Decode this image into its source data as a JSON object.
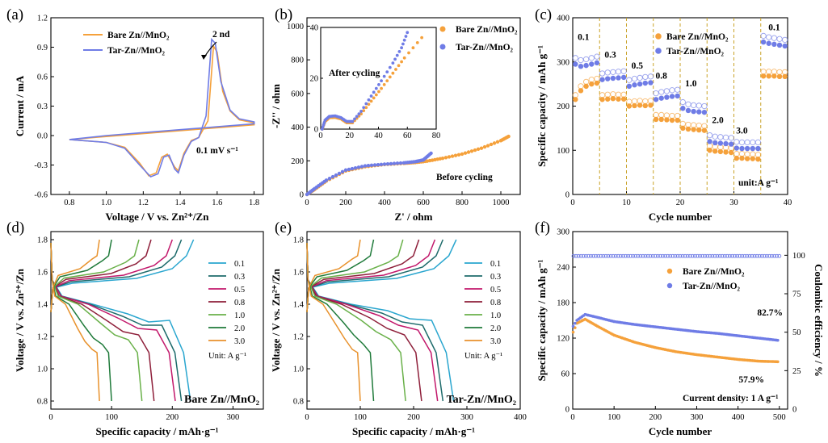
{
  "colors": {
    "bare": "#f5a13b",
    "tar": "#6f7ce6",
    "bare_dark": "#e88b20",
    "tar_dark": "#5566dd",
    "stripe": "#c9a227",
    "green_text": "#2e7d1e",
    "cyc_curves": [
      "#2aa6cf",
      "#1e6b6b",
      "#c2186b",
      "#8e1f3a",
      "#6ab14a",
      "#1f7a3a",
      "#e8912b"
    ]
  },
  "panels": [
    {
      "id": "a",
      "letter": "(a)",
      "chart_data": {
        "type": "line",
        "title": "",
        "xlabel": "Voltage / V vs. Zn²⁺/Zn",
        "ylabel": "Current / mA",
        "xlim": [
          0.7,
          1.85
        ],
        "ylim": [
          -0.6,
          1.2
        ],
        "xticks": [
          "0.8",
          "1.0",
          "1.2",
          "1.4",
          "1.6",
          "1.8"
        ],
        "yticks": [
          "-0.6",
          "-0.3",
          "0.0",
          "0.3",
          "0.6",
          "0.9",
          "1.2"
        ],
        "legend": [
          "Bare Zn//MnO₂",
          "Tar-Zn//MnO₂"
        ],
        "annotations": [
          "2 nd",
          "0.1 mV s⁻¹"
        ],
        "series": [
          {
            "name": "Bare Zn//MnO₂",
            "points": [
              [
                0.8,
                -0.04
              ],
              [
                1.0,
                -0.07
              ],
              [
                1.1,
                -0.12
              ],
              [
                1.18,
                -0.28
              ],
              [
                1.23,
                -0.41
              ],
              [
                1.27,
                -0.38
              ],
              [
                1.3,
                -0.22
              ],
              [
                1.33,
                -0.19
              ],
              [
                1.37,
                -0.32
              ],
              [
                1.39,
                -0.36
              ],
              [
                1.42,
                -0.18
              ],
              [
                1.46,
                -0.05
              ],
              [
                1.5,
                -0.02
              ],
              [
                1.55,
                0.15
              ],
              [
                1.58,
                0.91
              ],
              [
                1.6,
                0.85
              ],
              [
                1.63,
                0.45
              ],
              [
                1.67,
                0.25
              ],
              [
                1.72,
                0.16
              ],
              [
                1.8,
                0.13
              ],
              [
                1.8,
                0.11
              ],
              [
                1.6,
                0.08
              ],
              [
                1.4,
                0.05
              ],
              [
                1.2,
                0.02
              ],
              [
                1.0,
                -0.01
              ],
              [
                0.8,
                -0.04
              ]
            ]
          },
          {
            "name": "Tar-Zn//MnO₂",
            "points": [
              [
                0.8,
                -0.04
              ],
              [
                1.0,
                -0.07
              ],
              [
                1.1,
                -0.13
              ],
              [
                1.18,
                -0.3
              ],
              [
                1.24,
                -0.42
              ],
              [
                1.28,
                -0.39
              ],
              [
                1.31,
                -0.22
              ],
              [
                1.34,
                -0.2
              ],
              [
                1.37,
                -0.34
              ],
              [
                1.39,
                -0.38
              ],
              [
                1.42,
                -0.2
              ],
              [
                1.46,
                -0.06
              ],
              [
                1.5,
                -0.02
              ],
              [
                1.54,
                0.2
              ],
              [
                1.57,
                0.98
              ],
              [
                1.59,
                0.94
              ],
              [
                1.62,
                0.55
              ],
              [
                1.67,
                0.26
              ],
              [
                1.72,
                0.17
              ],
              [
                1.8,
                0.14
              ],
              [
                1.8,
                0.12
              ],
              [
                1.6,
                0.09
              ],
              [
                1.4,
                0.06
              ],
              [
                1.2,
                0.03
              ],
              [
                1.0,
                0.0
              ],
              [
                0.8,
                -0.04
              ]
            ]
          }
        ]
      }
    },
    {
      "id": "b",
      "letter": "(b)",
      "chart_data": {
        "type": "scatter",
        "xlabel": "Z' / ohm",
        "ylabel": "-Z'' / ohm",
        "xlim": [
          0,
          1100
        ],
        "ylim": [
          0,
          1050
        ],
        "xticks": [
          "0",
          "200",
          "400",
          "600",
          "800",
          "1000"
        ],
        "yticks": [
          "0",
          "200",
          "400",
          "600",
          "800",
          "1000"
        ],
        "legend": [
          "Bare Zn//MnO₂",
          "Tar-Zn//MnO₂"
        ],
        "annotations": [
          "Before cycling",
          "After cycling"
        ],
        "series": [
          {
            "name": "Bare Zn//MnO₂",
            "points": [
              [
                0,
                0
              ],
              [
                40,
                30
              ],
              [
                100,
                80
              ],
              [
                200,
                140
              ],
              [
                300,
                165
              ],
              [
                400,
                178
              ],
              [
                500,
                185
              ],
              [
                560,
                190
              ],
              [
                620,
                198
              ],
              [
                700,
                215
              ],
              [
                800,
                240
              ],
              [
                900,
                275
              ],
              [
                1000,
                320
              ],
              [
                1040,
                345
              ]
            ]
          },
          {
            "name": "Tar-Zn//MnO₂",
            "points": [
              [
                0,
                0
              ],
              [
                40,
                35
              ],
              [
                100,
                85
              ],
              [
                200,
                145
              ],
              [
                300,
                170
              ],
              [
                400,
                180
              ],
              [
                500,
                188
              ],
              [
                560,
                195
              ],
              [
                600,
                205
              ],
              [
                640,
                245
              ]
            ]
          }
        ],
        "inset": {
          "xlim": [
            0,
            80
          ],
          "ylim": [
            0,
            40
          ],
          "xticks": [
            "0",
            "20",
            "40",
            "60",
            "80"
          ],
          "yticks": [
            "0",
            "20",
            "40"
          ],
          "series": [
            {
              "name": "Bare Zn//MnO₂",
              "points": [
                [
                  1,
                  0
                ],
                [
                  3,
                  3
                ],
                [
                  6,
                  4.5
                ],
                [
                  10,
                  4.6
                ],
                [
                  14,
                  4
                ],
                [
                  18,
                  2.5
                ],
                [
                  22,
                  2.5
                ],
                [
                  28,
                  6
                ],
                [
                  35,
                  11
                ],
                [
                  42,
                  16
                ],
                [
                  50,
                  22
                ],
                [
                  58,
                  28
                ],
                [
                  70,
                  36
                ]
              ]
            },
            {
              "name": "Tar-Zn//MnO₂",
              "points": [
                [
                  1,
                  0
                ],
                [
                  3,
                  3.5
                ],
                [
                  6,
                  5
                ],
                [
                  10,
                  5.2
                ],
                [
                  14,
                  4.5
                ],
                [
                  18,
                  3
                ],
                [
                  22,
                  3
                ],
                [
                  28,
                  7
                ],
                [
                  35,
                  13
                ],
                [
                  42,
                  19
                ],
                [
                  50,
                  26
                ],
                [
                  56,
                  32
                ],
                [
                  60,
                  38
                ]
              ]
            }
          ]
        }
      }
    },
    {
      "id": "c",
      "letter": "(c)",
      "chart_data": {
        "type": "scatter",
        "xlabel": "Cycle number",
        "ylabel": "Specific capacity / mAh g⁻¹",
        "xlim": [
          0,
          40
        ],
        "ylim": [
          0,
          400
        ],
        "xticks": [
          "0",
          "10",
          "20",
          "30",
          "40"
        ],
        "yticks": [
          "0",
          "100",
          "200",
          "300",
          "400"
        ],
        "legend": [
          "Bare Zn//MnO₂",
          "Tar-Zn//MnO₂"
        ],
        "rate_labels": [
          "0.1",
          "0.3",
          "0.5",
          "0.8",
          "1.0",
          "2.0",
          "3.0",
          "0.1"
        ],
        "unit_label": "unit:A g⁻¹",
        "segment_boundaries": [
          5,
          10,
          15,
          20,
          25,
          30,
          35
        ],
        "series": [
          {
            "name": "Bare Zn//MnO₂",
            "values": [
              215,
              235,
              245,
              250,
              252,
              215,
              216,
              217,
              216,
              216,
              200,
              201,
              202,
              201,
              202,
              170,
              170,
              169,
              168,
              168,
              150,
              148,
              147,
              146,
              145,
              100,
              98,
              97,
              96,
              95,
              82,
              82,
              81,
              81,
              80,
              268,
              268,
              268,
              267,
              267
            ]
          },
          {
            "name": "Tar-Zn//MnO₂",
            "values": [
              295,
              290,
              292,
              295,
              298,
              260,
              262,
              263,
              264,
              265,
              245,
              248,
              250,
              252,
              253,
              215,
              218,
              220,
              222,
              223,
              195,
              190,
              188,
              187,
              186,
              120,
              117,
              116,
              115,
              114,
              105,
              104,
              104,
              104,
              104,
              345,
              342,
              340,
              338,
              336
            ]
          }
        ]
      }
    },
    {
      "id": "d",
      "letter": "(d)",
      "chart_data": {
        "type": "line",
        "xlabel": "Specific capacity / mAh·g⁻¹",
        "ylabel": "Voltage / V vs. Zn²⁺/Zn",
        "xlim": [
          0,
          350
        ],
        "ylim": [
          0.75,
          1.85
        ],
        "xticks": [
          "0",
          "100",
          "200",
          "300"
        ],
        "yticks": [
          "0.8",
          "1.0",
          "1.2",
          "1.4",
          "1.6",
          "1.8"
        ],
        "legend_title": "Unit: A g⁻¹",
        "legend": [
          "0.1",
          "0.3",
          "0.5",
          "0.8",
          "1.0",
          "2.0",
          "3.0"
        ],
        "label": "Bare Zn//MnO₂",
        "discharge_capacities": [
          230,
          215,
          205,
          170,
          150,
          100,
          80
        ],
        "charge_capacities": [
          235,
          215,
          200,
          165,
          145,
          100,
          80
        ]
      }
    },
    {
      "id": "e",
      "letter": "(e)",
      "chart_data": {
        "type": "line",
        "xlabel": "Specific capacity / mAh·g⁻¹",
        "ylabel": "Voltage / V vs. Zn²⁺/Zn",
        "xlim": [
          0,
          400
        ],
        "ylim": [
          0.75,
          1.85
        ],
        "xticks": [
          "0",
          "100",
          "200",
          "300",
          "400"
        ],
        "yticks": [
          "0.8",
          "1.0",
          "1.2",
          "1.4",
          "1.6",
          "1.8"
        ],
        "legend_title": "Unit: A g⁻¹",
        "legend": [
          "0.1",
          "0.3",
          "0.5",
          "0.8",
          "1.0",
          "2.0",
          "3.0"
        ],
        "label": "Tar-Zn//MnO₂",
        "discharge_capacities": [
          275,
          255,
          245,
          215,
          185,
          125,
          100
        ],
        "charge_capacities": [
          280,
          255,
          240,
          210,
          180,
          125,
          100
        ]
      }
    },
    {
      "id": "f",
      "letter": "(f)",
      "chart_data": {
        "type": "scatter",
        "xlabel": "Cycle number",
        "ylabel": "Specific capacity / mAh g⁻¹",
        "ylabel_right": "Coulombic efficiency / %",
        "xlim": [
          0,
          520
        ],
        "ylim": [
          0,
          300
        ],
        "ylim_right": [
          0,
          115.4
        ],
        "xticks": [
          "0",
          "100",
          "200",
          "300",
          "400",
          "500"
        ],
        "yticks": [
          "0",
          "60",
          "120",
          "180",
          "240",
          "300"
        ],
        "yticks_right": [
          "0",
          "25",
          "50",
          "75",
          "100"
        ],
        "legend": [
          "Bare Zn//MnO₂",
          "Tar-Zn//MnO₂"
        ],
        "annotations": [
          "82.7%",
          "57.9%",
          "Current density: 1 A g⁻¹"
        ],
        "series": [
          {
            "name": "Bare Zn//MnO₂",
            "points": [
              [
                1,
                130
              ],
              [
                10,
                145
              ],
              [
                30,
                152
              ],
              [
                60,
                140
              ],
              [
                100,
                125
              ],
              [
                150,
                113
              ],
              [
                200,
                104
              ],
              [
                250,
                97
              ],
              [
                300,
                92
              ],
              [
                350,
                88
              ],
              [
                400,
                84
              ],
              [
                450,
                81
              ],
              [
                500,
                80
              ]
            ]
          },
          {
            "name": "Tar-Zn//MnO₂",
            "points": [
              [
                1,
                140
              ],
              [
                10,
                150
              ],
              [
                30,
                160
              ],
              [
                60,
                155
              ],
              [
                100,
                148
              ],
              [
                150,
                143
              ],
              [
                200,
                139
              ],
              [
                250,
                135
              ],
              [
                300,
                131
              ],
              [
                350,
                128
              ],
              [
                400,
                124
              ],
              [
                450,
                120
              ],
              [
                500,
                116
              ]
            ]
          }
        ],
        "coulombic_efficiency": {
          "value": 99.5
        }
      }
    }
  ]
}
